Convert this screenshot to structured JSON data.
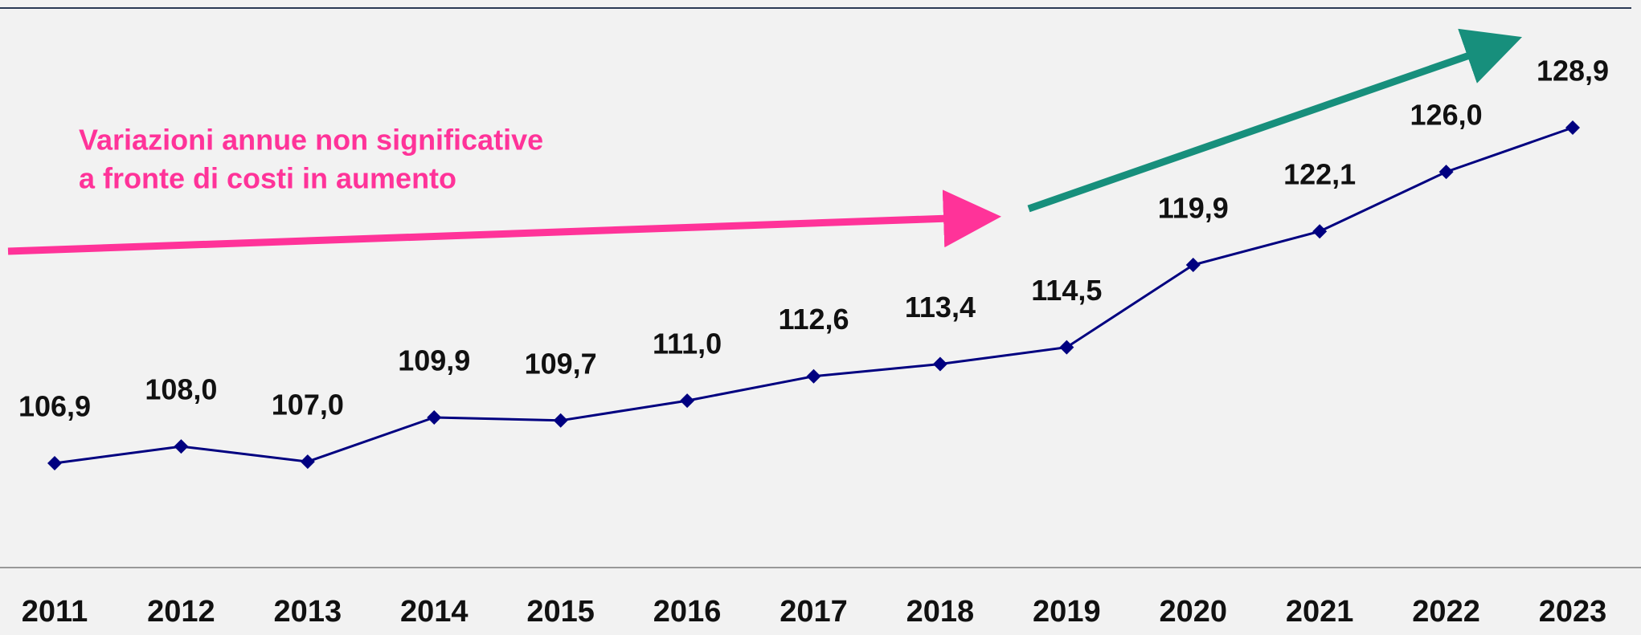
{
  "chart_data": {
    "type": "line",
    "categories": [
      "2011",
      "2012",
      "2013",
      "2014",
      "2015",
      "2016",
      "2017",
      "2018",
      "2019",
      "2020",
      "2021",
      "2022",
      "2023"
    ],
    "series": [
      {
        "color": "#000080",
        "values": [
          106.9,
          108.0,
          107.0,
          109.9,
          109.7,
          111.0,
          112.6,
          113.4,
          114.5,
          119.9,
          122.1,
          126.0,
          128.9
        ],
        "value_labels": [
          "106,9",
          "108,0",
          "107,0",
          "109,9",
          "109,7",
          "111,0",
          "112,6",
          "113,4",
          "114,5",
          "119,9",
          "122,1",
          "126,0",
          "128,9"
        ]
      }
    ],
    "annotation": [
      "Variazioni annue non significative",
      "a fronte di costi in aumento"
    ],
    "annotation_color": "#ff3399",
    "trend_color": "#178f7c"
  }
}
